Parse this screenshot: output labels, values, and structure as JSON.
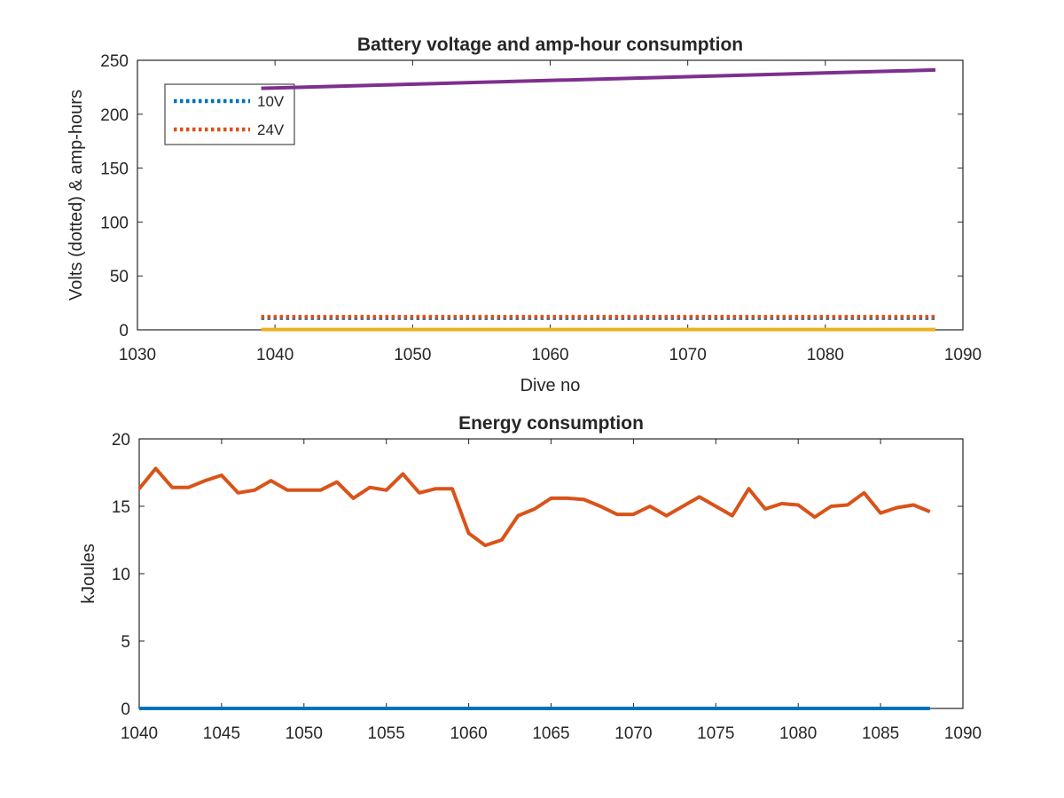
{
  "chart_data": [
    {
      "type": "line",
      "title": "Battery voltage and amp-hour consumption",
      "xlabel": "Dive no",
      "ylabel": "Volts (dotted) & amp-hours",
      "xlim": [
        1030,
        1090
      ],
      "ylim": [
        0,
        250
      ],
      "xticks": [
        1030,
        1040,
        1050,
        1060,
        1070,
        1080,
        1090
      ],
      "yticks": [
        0,
        50,
        100,
        150,
        200,
        250
      ],
      "grid": false,
      "legend_position": "top-left",
      "x_range": [
        1039,
        1088
      ],
      "series": [
        {
          "name": "10V",
          "style": "dotted",
          "color": "#0072BD",
          "x": [
            1039,
            1088
          ],
          "y": [
            11,
            11
          ]
        },
        {
          "name": "24V",
          "style": "dotted",
          "color": "#D95319",
          "x": [
            1039,
            1088
          ],
          "y": [
            12,
            12
          ]
        },
        {
          "style": "solid",
          "color": "#EDB120",
          "x": [
            1039,
            1088
          ],
          "y": [
            0.3,
            0.3
          ]
        },
        {
          "style": "solid",
          "color": "#7E2F8E",
          "x": [
            1039,
            1088
          ],
          "y": [
            224,
            241
          ]
        }
      ]
    },
    {
      "type": "line",
      "title": "Energy consumption",
      "xlabel": "",
      "ylabel": "kJoules",
      "xlim": [
        1040,
        1090
      ],
      "ylim": [
        0,
        20
      ],
      "xticks": [
        1040,
        1045,
        1050,
        1055,
        1060,
        1065,
        1070,
        1075,
        1080,
        1085,
        1090
      ],
      "yticks": [
        0,
        5,
        10,
        15,
        20
      ],
      "grid": false,
      "series": [
        {
          "style": "solid",
          "color": "#D95319",
          "x": [
            1040,
            1041,
            1042,
            1043,
            1044,
            1045,
            1046,
            1047,
            1048,
            1049,
            1050,
            1051,
            1052,
            1053,
            1054,
            1055,
            1056,
            1057,
            1058,
            1059,
            1060,
            1061,
            1062,
            1063,
            1064,
            1065,
            1066,
            1067,
            1068,
            1069,
            1070,
            1071,
            1072,
            1073,
            1074,
            1075,
            1076,
            1077,
            1078,
            1079,
            1080,
            1081,
            1082,
            1083,
            1084,
            1085,
            1086,
            1087,
            1088
          ],
          "y": [
            16.3,
            17.8,
            16.4,
            16.4,
            16.9,
            17.3,
            16.0,
            16.2,
            16.9,
            16.2,
            16.2,
            16.2,
            16.8,
            15.6,
            16.4,
            16.2,
            17.4,
            16.0,
            16.3,
            16.3,
            13.0,
            12.1,
            12.5,
            14.3,
            14.8,
            15.6,
            15.6,
            15.5,
            15.0,
            14.4,
            14.4,
            15.0,
            14.3,
            15.0,
            15.7,
            15.0,
            14.3,
            16.3,
            14.8,
            15.2,
            15.1,
            14.2,
            15.0,
            15.1,
            16.0,
            14.5,
            14.9,
            15.1,
            14.6
          ]
        },
        {
          "style": "solid",
          "color": "#0072BD",
          "x": [
            1040,
            1088
          ],
          "y": [
            0,
            0
          ]
        }
      ]
    }
  ]
}
